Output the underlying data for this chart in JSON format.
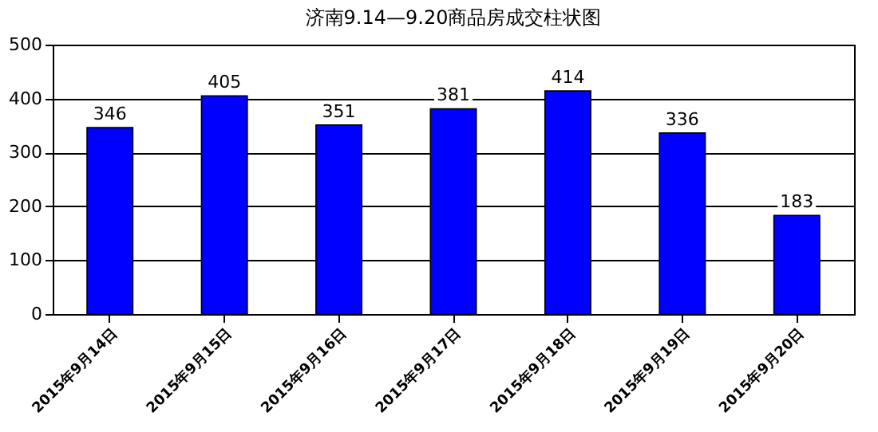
{
  "chart_data": {
    "type": "bar",
    "title": "济南9.14—9.20商品房成交柱状图",
    "categories": [
      "2015年9月14日",
      "2015年9月15日",
      "2015年9月16日",
      "2015年9月17日",
      "2015年9月18日",
      "2015年9月19日",
      "2015年9月20日"
    ],
    "values": [
      346,
      405,
      351,
      381,
      414,
      336,
      183
    ],
    "color": "#0000ff",
    "ylim": [
      0,
      500
    ],
    "yticks": [
      0,
      100,
      200,
      300,
      400,
      500
    ],
    "grid": "y",
    "data_labels": true
  }
}
